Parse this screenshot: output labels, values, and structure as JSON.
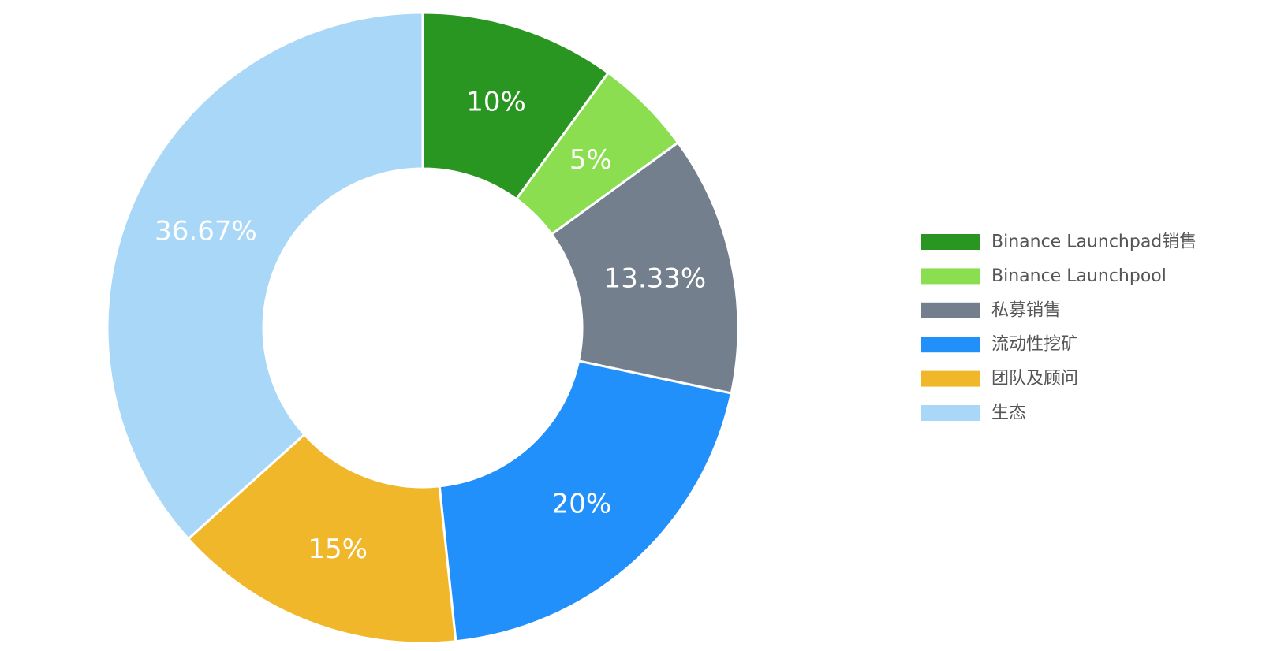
{
  "chart_data": {
    "type": "pie",
    "donut": true,
    "legend_position": "right",
    "slices": [
      {
        "label": "Binance Launchpad销售",
        "value": 10,
        "display": "10%",
        "color": "#2a9622"
      },
      {
        "label": "Binance Launchpool",
        "value": 5,
        "display": "5%",
        "color": "#8ade4f"
      },
      {
        "label": "私募销售",
        "value": 13.33,
        "display": "13.33%",
        "color": "#737f8c"
      },
      {
        "label": "流动性挖矿",
        "value": 20,
        "display": "20%",
        "color": "#2290fa"
      },
      {
        "label": "团队及顾问",
        "value": 15,
        "display": "15%",
        "color": "#f1b72b"
      },
      {
        "label": "生态",
        "value": 36.67,
        "display": "36.67%",
        "color": "#a8d7f8"
      }
    ]
  }
}
